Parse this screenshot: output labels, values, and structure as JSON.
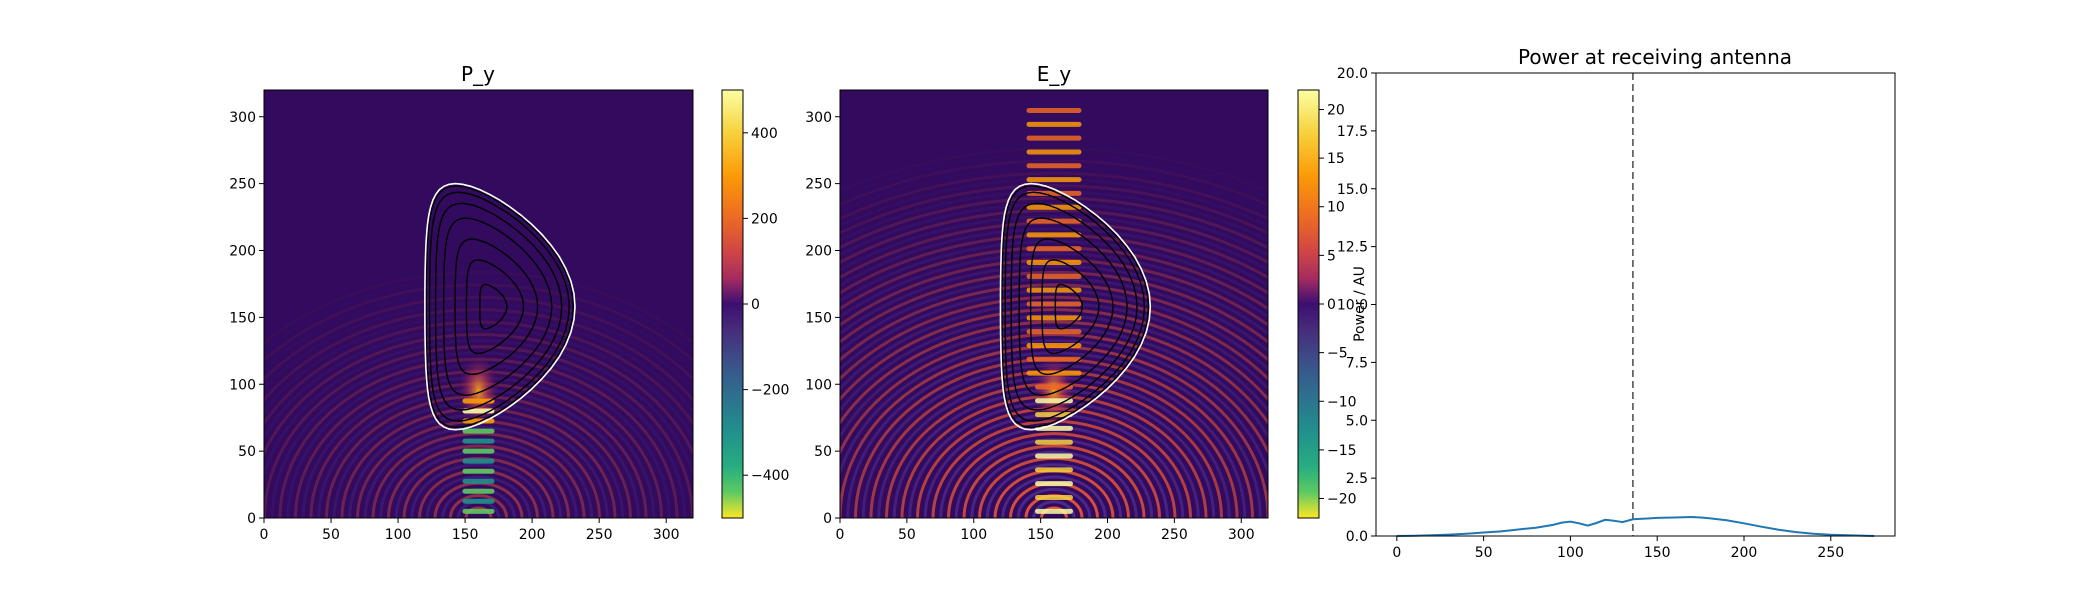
{
  "chart_data": [
    {
      "type": "heatmap",
      "title": "P_y",
      "xlabel": "",
      "ylabel": "",
      "xlim": [
        0,
        320
      ],
      "ylim": [
        0,
        320
      ],
      "xticks": [
        0,
        50,
        100,
        150,
        200,
        250,
        300
      ],
      "yticks": [
        0,
        50,
        100,
        150,
        200,
        250,
        300
      ],
      "colormap": "inferno (positive) / viridis (negative)",
      "colorbar": {
        "range": [
          -500,
          500
        ],
        "ticks": [
          400,
          200,
          0,
          -200,
          -400
        ]
      },
      "features": {
        "boundary_color": "#ffffff",
        "flux_contour_color": "#000000",
        "beam_x_center": 160,
        "fringe_source_y": 0
      }
    },
    {
      "type": "heatmap",
      "title": "E_y",
      "xlabel": "",
      "ylabel": "",
      "xlim": [
        0,
        320
      ],
      "ylim": [
        0,
        320
      ],
      "xticks": [
        0,
        50,
        100,
        150,
        200,
        250,
        300
      ],
      "yticks": [
        0,
        50,
        100,
        150,
        200,
        250,
        300
      ],
      "colormap": "inferno (positive) / viridis (negative)",
      "colorbar": {
        "range": [
          -22,
          22
        ],
        "ticks": [
          20,
          15,
          10,
          5,
          0,
          -5,
          -10,
          -15,
          -20
        ]
      },
      "features": {
        "boundary_color": "#ffffff",
        "flux_contour_color": "#000000",
        "beam_x_center": 160,
        "fringe_source_y": 0
      }
    },
    {
      "type": "line",
      "title": "Power at receiving antenna",
      "xlabel": "",
      "ylabel": "Power / AU",
      "xlim": [
        -12,
        287
      ],
      "ylim": [
        0,
        20
      ],
      "xticks": [
        0,
        50,
        100,
        150,
        200,
        250
      ],
      "yticks": [
        0.0,
        2.5,
        5.0,
        7.5,
        10.0,
        12.5,
        15.0,
        17.5,
        20.0
      ],
      "grid": false,
      "line_color": "#1f77b4",
      "vline": {
        "x": 136,
        "style": "dashed",
        "color": "#555555"
      },
      "series": [
        {
          "x": [
            0,
            10,
            20,
            30,
            40,
            50,
            60,
            70,
            80,
            90,
            95,
            100,
            105,
            110,
            115,
            120,
            125,
            130,
            136,
            140,
            150,
            160,
            170,
            175,
            180,
            190,
            200,
            210,
            220,
            230,
            240,
            250,
            260,
            270,
            275
          ],
          "values": [
            0.0,
            0.01,
            0.03,
            0.06,
            0.1,
            0.15,
            0.2,
            0.28,
            0.36,
            0.48,
            0.58,
            0.62,
            0.55,
            0.45,
            0.56,
            0.7,
            0.66,
            0.6,
            0.72,
            0.74,
            0.78,
            0.8,
            0.82,
            0.8,
            0.77,
            0.68,
            0.55,
            0.4,
            0.27,
            0.17,
            0.1,
            0.05,
            0.03,
            0.01,
            0.0
          ]
        }
      ]
    }
  ]
}
